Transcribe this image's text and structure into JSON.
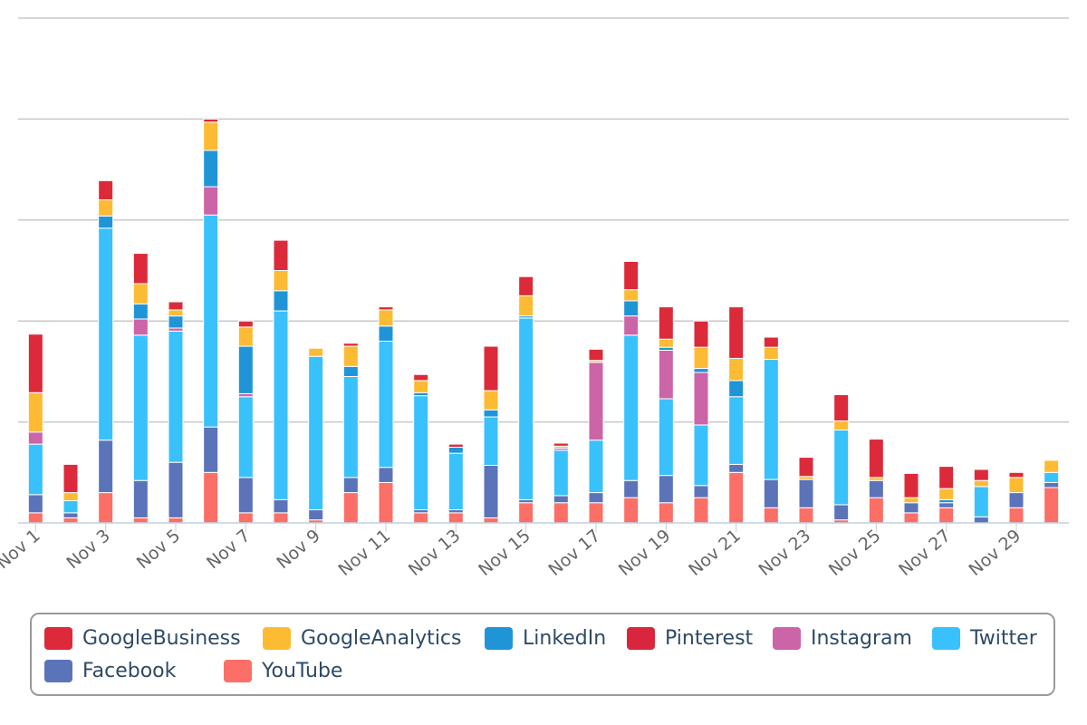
{
  "chart_data": {
    "type": "bar",
    "stacked": true,
    "grid": true,
    "legend_position": "bottom",
    "x_tick_labels": [
      "Nov 1",
      "Nov 3",
      "Nov 5",
      "Nov 7",
      "Nov 9",
      "Nov 11",
      "Nov 13",
      "Nov 15",
      "Nov 17",
      "Nov 19",
      "Nov 21",
      "Nov 23",
      "Nov 25",
      "Nov 27",
      "Nov 29"
    ],
    "categories": [
      "Nov 1",
      "Nov 2",
      "Nov 3",
      "Nov 4",
      "Nov 5",
      "Nov 6",
      "Nov 7",
      "Nov 8",
      "Nov 9",
      "Nov 10",
      "Nov 11",
      "Nov 12",
      "Nov 13",
      "Nov 14",
      "Nov 15",
      "Nov 16",
      "Nov 17",
      "Nov 18",
      "Nov 19",
      "Nov 20",
      "Nov 21",
      "Nov 22",
      "Nov 23",
      "Nov 24",
      "Nov 25",
      "Nov 26",
      "Nov 27",
      "Nov 28",
      "Nov 29",
      "Nov 30"
    ],
    "ylim": [
      0,
      50
    ],
    "series": [
      {
        "name": "YouTube",
        "color": "#fb6f67",
        "values": [
          1,
          0.5,
          3,
          0.5,
          0.5,
          5,
          1,
          1,
          0.3,
          3,
          4,
          1,
          1,
          0.5,
          2,
          2,
          2,
          2.5,
          2,
          2.5,
          5,
          1.5,
          1.5,
          0.3,
          2.5,
          1,
          1.5,
          0,
          1.5,
          3.5
        ]
      },
      {
        "name": "Facebook",
        "color": "#5b73b9",
        "values": [
          1.8,
          0.5,
          5.2,
          3.7,
          5.5,
          4.5,
          3.5,
          1.3,
          1,
          1.5,
          1.5,
          0.3,
          0.3,
          5.2,
          0.3,
          0.7,
          1,
          1.7,
          2.7,
          1.2,
          0.8,
          2.8,
          2.8,
          1.5,
          1.7,
          1,
          0.5,
          0.6,
          1.5,
          0.5
        ]
      },
      {
        "name": "Twitter",
        "color": "#39c1fc",
        "values": [
          5,
          1.2,
          21,
          14.4,
          13,
          21,
          8,
          18.7,
          15.2,
          10,
          12.5,
          11.3,
          5.6,
          4.8,
          18,
          4.5,
          5.2,
          14.4,
          7.6,
          6,
          6.7,
          11.9,
          0,
          7.4,
          0,
          0,
          0,
          3,
          0,
          1
        ]
      },
      {
        "name": "Instagram",
        "color": "#cc64a8",
        "values": [
          1.2,
          0,
          0,
          1.6,
          0.3,
          2.8,
          0.3,
          0,
          0,
          0,
          0,
          0,
          0,
          0,
          0,
          0.2,
          7.7,
          1.9,
          4.8,
          5.2,
          0,
          0,
          0,
          0,
          0,
          0,
          0,
          0,
          0,
          0
        ]
      },
      {
        "name": "LinkedIn",
        "color": "#1f95d8",
        "values": [
          0,
          0,
          1.2,
          1.5,
          1.2,
          3.6,
          4.7,
          2,
          0,
          1,
          1.5,
          0.3,
          0.6,
          0.7,
          0.2,
          0,
          0,
          1.5,
          0.3,
          0.4,
          1.6,
          0,
          0,
          0,
          0,
          0,
          0.3,
          0,
          0,
          0
        ]
      },
      {
        "name": "GoogleAnalytics",
        "color": "#fdbb33",
        "values": [
          3.9,
          0.8,
          1.6,
          2,
          0.6,
          2.8,
          1.9,
          2,
          0.8,
          2,
          1.6,
          1.2,
          0,
          1.9,
          2,
          0.2,
          0.2,
          1.1,
          0.8,
          2.1,
          2.2,
          1.2,
          0.3,
          0.9,
          0.3,
          0.5,
          1.1,
          0.6,
          1.5,
          1.2
        ]
      },
      {
        "name": "Pinterest",
        "color": "#d9263f",
        "values": [
          0,
          0,
          0,
          0,
          0,
          0,
          0,
          0,
          0,
          0,
          0,
          0,
          0,
          0,
          0,
          0,
          0,
          0,
          0,
          0,
          0,
          0,
          0,
          0,
          0,
          0,
          0,
          0,
          0,
          0
        ]
      },
      {
        "name": "GoogleBusiness",
        "color": "#dc2a3a",
        "values": [
          5.8,
          2.8,
          1.9,
          3,
          0.8,
          0.3,
          0.6,
          3,
          0,
          0.3,
          0.3,
          0.6,
          0.3,
          4.4,
          1.9,
          0.3,
          1.1,
          2.8,
          3.2,
          2.6,
          5.1,
          1,
          1.9,
          2.6,
          3.8,
          2.4,
          2.2,
          1.1,
          0.5,
          0
        ]
      }
    ]
  },
  "legend": {
    "items": [
      {
        "label": "GoogleBusiness",
        "color": "#dc2a3a"
      },
      {
        "label": "GoogleAnalytics",
        "color": "#fdbb33"
      },
      {
        "label": "LinkedIn",
        "color": "#1f95d8"
      },
      {
        "label": "Pinterest",
        "color": "#d9263f"
      },
      {
        "label": "Instagram",
        "color": "#cc64a8"
      },
      {
        "label": "Twitter",
        "color": "#39c1fc"
      },
      {
        "label": "Facebook",
        "color": "#5b73b9"
      },
      {
        "label": "YouTube",
        "color": "#fb6f67"
      }
    ]
  }
}
